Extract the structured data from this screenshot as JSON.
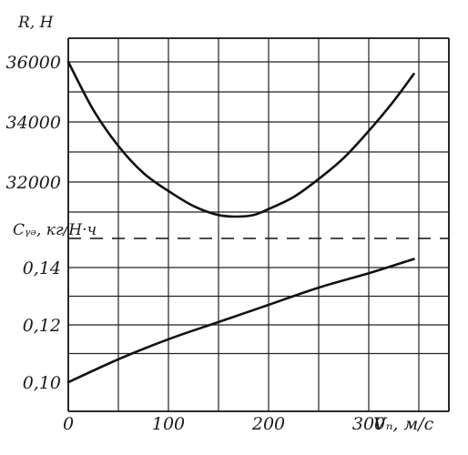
{
  "chart_data": [
    {
      "type": "line",
      "title": "",
      "xlabel": "Vₓ, м/c",
      "ylabel": "R, H",
      "xlim": [
        0,
        350
      ],
      "ylim": [
        30500,
        36300
      ],
      "grid": true,
      "x_ticks": [
        "0",
        "100",
        "200",
        "300"
      ],
      "y_ticks": [
        "36000",
        "34000",
        "32000"
      ],
      "series": [
        {
          "x": [
            0,
            25,
            50,
            75,
            100,
            125,
            150,
            170,
            185,
            200,
            225,
            250,
            275,
            300,
            325,
            345
          ],
          "values": [
            36000,
            34400,
            33200,
            32300,
            31700,
            31200,
            30900,
            30850,
            30900,
            31100,
            31500,
            32100,
            32800,
            33700,
            34700,
            35600
          ]
        }
      ]
    },
    {
      "type": "line",
      "title": "",
      "xlabel": "Vₓ, м/c",
      "ylabel": "Cᵧₔ, кг/H·ч",
      "xlim": [
        0,
        350
      ],
      "ylim": [
        0.095,
        0.155
      ],
      "grid": true,
      "x_ticks": [
        "0",
        "100",
        "200",
        "300"
      ],
      "y_ticks": [
        "0,14",
        "0,12",
        "0,10"
      ],
      "series": [
        {
          "x": [
            0,
            50,
            100,
            150,
            200,
            250,
            300,
            345
          ],
          "values": [
            0.1,
            0.108,
            0.115,
            0.121,
            0.127,
            0.133,
            0.138,
            0.143
          ]
        }
      ]
    }
  ],
  "labels": {
    "r_axis_title": "R, H",
    "c_axis_title": "Cᵧₔ, кг/H·ч",
    "x_axis_unit": "Vₙ, м/c"
  }
}
